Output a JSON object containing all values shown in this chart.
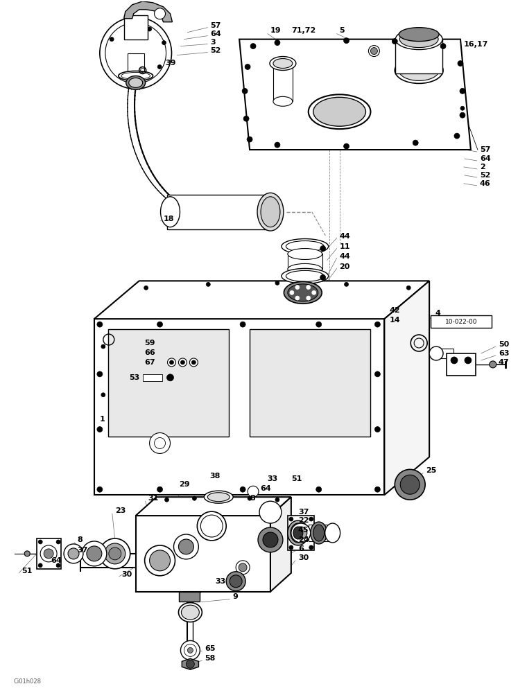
{
  "bg_color": "#ffffff",
  "fig_width": 7.6,
  "fig_height": 10.0,
  "watermark": "Ci01h028",
  "ref_box": "10-022-00"
}
